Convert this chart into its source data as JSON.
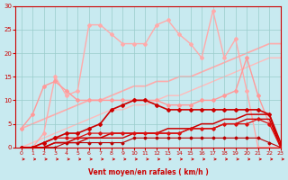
{
  "xlabel": "Vent moyen/en rafales ( km/h )",
  "xlim": [
    -0.5,
    23
  ],
  "ylim": [
    0,
    30
  ],
  "yticks": [
    0,
    5,
    10,
    15,
    20,
    25,
    30
  ],
  "xticks": [
    0,
    1,
    2,
    3,
    4,
    5,
    6,
    7,
    8,
    9,
    10,
    11,
    12,
    13,
    14,
    15,
    16,
    17,
    18,
    19,
    20,
    21,
    22,
    23
  ],
  "bg_color": "#c8eaf0",
  "grid_color": "#99cccc",
  "lines": [
    {
      "x": [
        0,
        1,
        2,
        3,
        4,
        5,
        6,
        7,
        8,
        9,
        10,
        11,
        12,
        13,
        14,
        15,
        16,
        17,
        18,
        19,
        20,
        21,
        22,
        23
      ],
      "y": [
        0,
        0,
        1,
        2,
        3,
        3,
        4,
        5,
        8,
        9,
        10,
        10,
        9,
        8,
        8,
        8,
        8,
        8,
        8,
        8,
        8,
        8,
        7,
        1
      ],
      "color": "#cc0000",
      "marker": "D",
      "markersize": 2,
      "linewidth": 1.2,
      "zorder": 5
    },
    {
      "x": [
        0,
        1,
        2,
        3,
        4,
        5,
        6,
        7,
        8,
        9,
        10,
        11,
        12,
        13,
        14,
        15,
        16,
        17,
        18,
        19,
        20,
        21,
        22,
        23
      ],
      "y": [
        0,
        0,
        0,
        1,
        1,
        2,
        2,
        2,
        3,
        3,
        3,
        3,
        3,
        4,
        4,
        4,
        5,
        5,
        6,
        6,
        7,
        7,
        7,
        0
      ],
      "color": "#cc0000",
      "marker": null,
      "markersize": 0,
      "linewidth": 1.1,
      "zorder": 4
    },
    {
      "x": [
        0,
        1,
        2,
        3,
        4,
        5,
        6,
        7,
        8,
        9,
        10,
        11,
        12,
        13,
        14,
        15,
        16,
        17,
        18,
        19,
        20,
        21,
        22,
        23
      ],
      "y": [
        0,
        0,
        0,
        1,
        1,
        1,
        2,
        2,
        2,
        2,
        3,
        3,
        3,
        3,
        3,
        4,
        4,
        4,
        5,
        5,
        6,
        6,
        6,
        0
      ],
      "color": "#cc0000",
      "marker": null,
      "markersize": 0,
      "linewidth": 1.0,
      "zorder": 4
    },
    {
      "x": [
        0,
        1,
        2,
        3,
        4,
        5,
        6,
        7,
        8,
        9,
        10,
        11,
        12,
        13,
        14,
        15,
        16,
        17,
        18,
        19,
        20,
        21,
        22,
        23
      ],
      "y": [
        0,
        0,
        1,
        2,
        2,
        2,
        3,
        3,
        3,
        3,
        3,
        3,
        3,
        3,
        3,
        4,
        4,
        4,
        5,
        5,
        5,
        6,
        5,
        0
      ],
      "color": "#dd1111",
      "marker": "D",
      "markersize": 1.8,
      "linewidth": 0.9,
      "zorder": 4
    },
    {
      "x": [
        0,
        1,
        2,
        3,
        4,
        5,
        6,
        7,
        8,
        9,
        10,
        11,
        12,
        13,
        14,
        15,
        16,
        17,
        18,
        19,
        20,
        21,
        22,
        23
      ],
      "y": [
        0,
        0,
        0,
        0,
        1,
        1,
        1,
        1,
        1,
        1,
        2,
        2,
        2,
        2,
        2,
        2,
        2,
        2,
        2,
        2,
        2,
        2,
        1,
        0
      ],
      "color": "#bb0000",
      "marker": "D",
      "markersize": 1.5,
      "linewidth": 0.8,
      "zorder": 3
    },
    {
      "x": [
        0,
        1,
        2,
        3,
        4,
        5,
        6,
        7,
        8,
        9,
        10,
        11,
        12,
        13,
        14,
        15,
        16,
        17,
        18,
        19,
        20,
        21,
        22,
        23
      ],
      "y": [
        0,
        0,
        3,
        15,
        11,
        12,
        26,
        26,
        24,
        22,
        22,
        22,
        26,
        27,
        24,
        22,
        19,
        29,
        19,
        23,
        12,
        0,
        0,
        0
      ],
      "color": "#ffaaaa",
      "marker": "D",
      "markersize": 2,
      "linewidth": 1.0,
      "zorder": 2
    },
    {
      "x": [
        0,
        1,
        2,
        3,
        4,
        5,
        6,
        7,
        8,
        9,
        10,
        11,
        12,
        13,
        14,
        15,
        16,
        17,
        18,
        19,
        20,
        21,
        22,
        23
      ],
      "y": [
        4,
        5,
        6,
        7,
        8,
        9,
        10,
        10,
        11,
        12,
        13,
        13,
        14,
        14,
        15,
        15,
        16,
        17,
        18,
        19,
        20,
        21,
        22,
        22
      ],
      "color": "#ffaaaa",
      "marker": null,
      "markersize": 0,
      "linewidth": 1.2,
      "zorder": 1
    },
    {
      "x": [
        0,
        1,
        2,
        3,
        4,
        5,
        6,
        7,
        8,
        9,
        10,
        11,
        12,
        13,
        14,
        15,
        16,
        17,
        18,
        19,
        20,
        21,
        22,
        23
      ],
      "y": [
        0,
        1,
        2,
        3,
        4,
        5,
        6,
        7,
        8,
        8,
        9,
        9,
        10,
        11,
        11,
        12,
        13,
        14,
        15,
        16,
        17,
        18,
        19,
        19
      ],
      "color": "#ffbbbb",
      "marker": null,
      "markersize": 0,
      "linewidth": 1.0,
      "zorder": 1
    },
    {
      "x": [
        0,
        1,
        2,
        3,
        4,
        5,
        6,
        7,
        8,
        9,
        10,
        11,
        12,
        13,
        14,
        15,
        16,
        17,
        18,
        19,
        20,
        21,
        22,
        23
      ],
      "y": [
        4,
        7,
        13,
        14,
        12,
        10,
        10,
        10,
        10,
        10,
        10,
        10,
        10,
        9,
        9,
        9,
        10,
        10,
        11,
        12,
        19,
        11,
        5,
        1
      ],
      "color": "#ff9999",
      "marker": "D",
      "markersize": 2,
      "linewidth": 1.0,
      "zorder": 2
    }
  ],
  "arrow_color": "#cc0000",
  "font_color": "#cc0000"
}
